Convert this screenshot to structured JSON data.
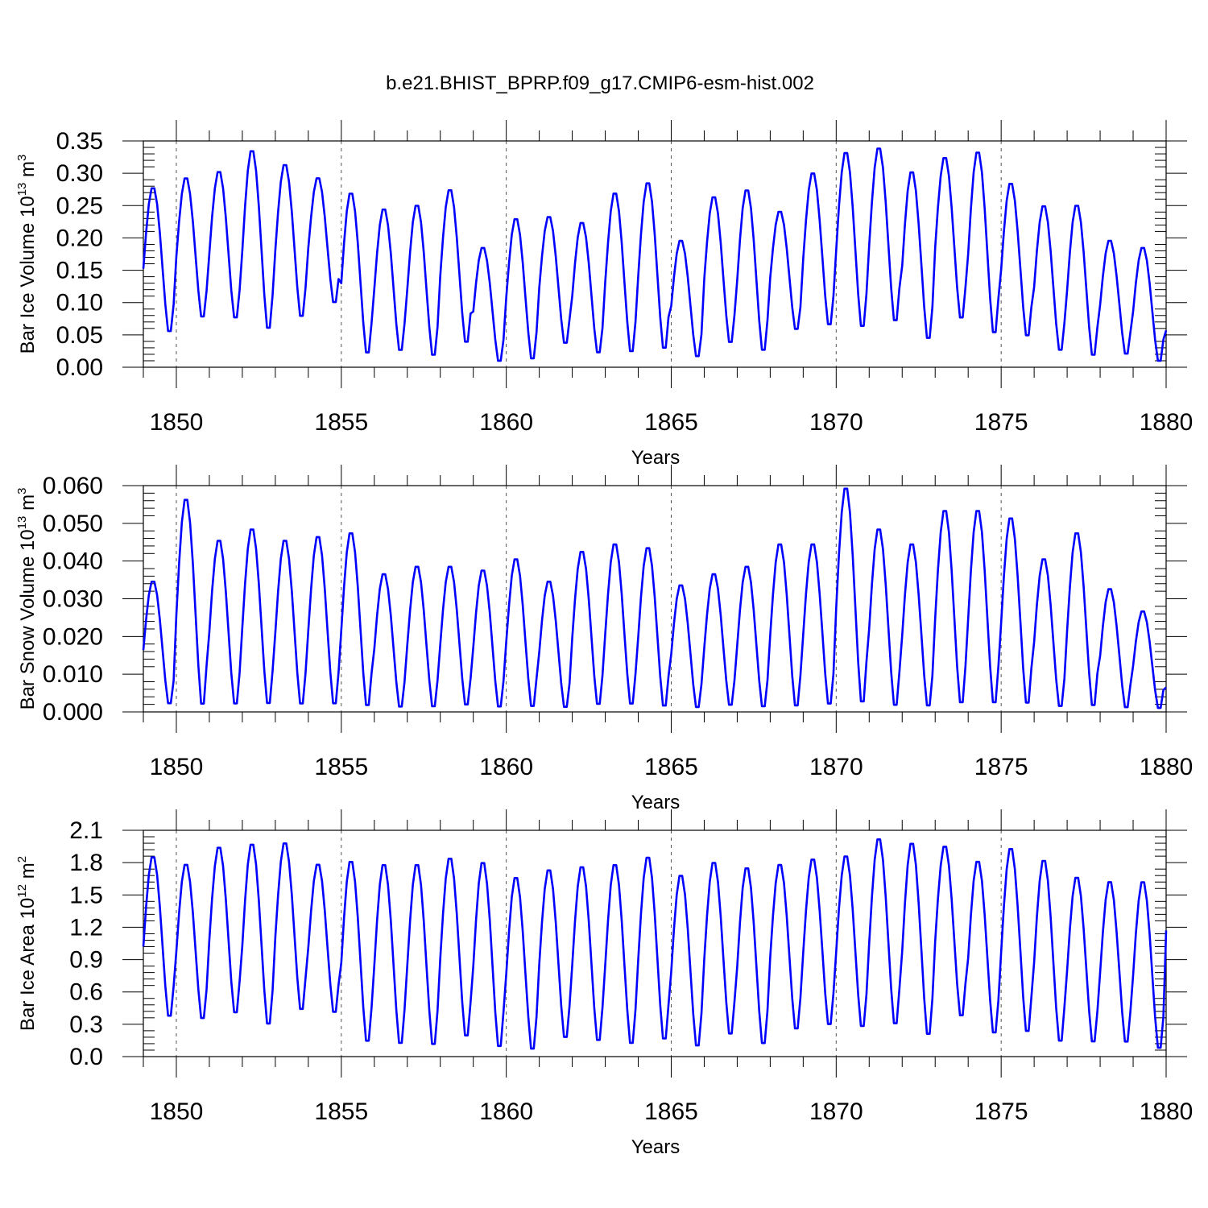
{
  "title": "b.e21.BHIST_BPRP.f09_g17.CMIP6-esm-hist.002",
  "chart_data": [
    {
      "type": "line",
      "ylabel": {
        "text": "Bar Ice Volume 10",
        "exp": "13",
        "unit": " m",
        "unit_exp": "3"
      },
      "xlabel": "Years",
      "xlim": [
        1849,
        1880
      ],
      "ylim": [
        0,
        0.35
      ],
      "xticks": [
        1850,
        1855,
        1860,
        1865,
        1870,
        1875,
        1880
      ],
      "yticks": [
        0.0,
        0.05,
        0.1,
        0.15,
        0.2,
        0.25,
        0.3,
        0.35
      ],
      "ytick_labels": [
        "0.00",
        "0.05",
        "0.10",
        "0.15",
        "0.20",
        "0.25",
        "0.30",
        "0.35"
      ],
      "grid": "vertical-dashed",
      "line_color": "#0000ff",
      "years": [
        1849,
        1850,
        1851,
        1852,
        1853,
        1854,
        1855,
        1856,
        1857,
        1858,
        1859,
        1860,
        1861,
        1862,
        1863,
        1864,
        1865,
        1866,
        1867,
        1868,
        1869,
        1870,
        1871,
        1872,
        1873,
        1874,
        1875,
        1876,
        1877,
        1878,
        1879
      ],
      "annual_max": [
        0.28,
        0.295,
        0.305,
        0.338,
        0.316,
        0.295,
        0.272,
        0.247,
        0.253,
        0.277,
        0.187,
        0.232,
        0.235,
        0.226,
        0.272,
        0.288,
        0.198,
        0.266,
        0.277,
        0.243,
        0.303,
        0.335,
        0.342,
        0.305,
        0.327,
        0.336,
        0.287,
        0.252,
        0.253,
        0.198,
        0.187
      ],
      "annual_min": [
        0.047,
        0.07,
        0.068,
        0.05,
        0.07,
        0.093,
        0.013,
        0.018,
        0.01,
        0.03,
        0.003,
        0.005,
        0.03,
        0.015,
        0.015,
        0.02,
        0.01,
        0.03,
        0.017,
        0.052,
        0.057,
        0.053,
        0.062,
        0.035,
        0.067,
        0.043,
        0.04,
        0.018,
        0.01,
        0.014,
        0.003
      ],
      "end_value": 0.057
    },
    {
      "type": "line",
      "ylabel": {
        "text": "Bar Snow Volume 10",
        "exp": "13",
        "unit": " m",
        "unit_exp": "3"
      },
      "xlabel": "Years",
      "xlim": [
        1849,
        1880
      ],
      "ylim": [
        0,
        0.06
      ],
      "xticks": [
        1850,
        1855,
        1860,
        1865,
        1870,
        1875,
        1880
      ],
      "yticks": [
        0.0,
        0.01,
        0.02,
        0.03,
        0.04,
        0.05,
        0.06
      ],
      "ytick_labels": [
        "0.000",
        "0.010",
        "0.020",
        "0.030",
        "0.040",
        "0.050",
        "0.060"
      ],
      "grid": "vertical-dashed",
      "line_color": "#0000ff",
      "years": [
        1849,
        1850,
        1851,
        1852,
        1853,
        1854,
        1855,
        1856,
        1857,
        1858,
        1859,
        1860,
        1861,
        1862,
        1863,
        1864,
        1865,
        1866,
        1867,
        1868,
        1869,
        1870,
        1871,
        1872,
        1873,
        1874,
        1875,
        1876,
        1877,
        1878,
        1879
      ],
      "annual_max": [
        0.035,
        0.057,
        0.046,
        0.049,
        0.046,
        0.047,
        0.048,
        0.037,
        0.039,
        0.039,
        0.038,
        0.041,
        0.035,
        0.043,
        0.045,
        0.044,
        0.034,
        0.037,
        0.039,
        0.045,
        0.045,
        0.06,
        0.049,
        0.045,
        0.054,
        0.054,
        0.052,
        0.041,
        0.048,
        0.033,
        0.027
      ],
      "annual_min": [
        0.001,
        0.0,
        0.0005,
        0.0005,
        0.0005,
        0.0005,
        0.0,
        0.0,
        0.0,
        0.0005,
        0.0,
        0.0,
        0.0,
        0.0005,
        0.0005,
        0.0,
        0.0,
        0.0005,
        0.0,
        0.0,
        0.0005,
        0.0005,
        0.0,
        0.0,
        0.0005,
        0.0005,
        0.0005,
        0.0,
        0.0,
        0.0,
        0.0
      ],
      "end_value": 0.0065
    },
    {
      "type": "line",
      "ylabel": {
        "text": "Bar Ice Area 10",
        "exp": "12",
        "unit": " m",
        "unit_exp": "2"
      },
      "xlabel": "Years",
      "xlim": [
        1849,
        1880
      ],
      "ylim": [
        0,
        2.1
      ],
      "xticks": [
        1850,
        1855,
        1860,
        1865,
        1870,
        1875,
        1880
      ],
      "yticks": [
        0.0,
        0.3,
        0.6,
        0.9,
        1.2,
        1.5,
        1.8,
        2.1
      ],
      "ytick_labels": [
        "0.0",
        "0.3",
        "0.6",
        "0.9",
        "1.2",
        "1.5",
        "1.8",
        "2.1"
      ],
      "grid": "vertical-dashed",
      "line_color": "#0000ff",
      "years": [
        1849,
        1850,
        1851,
        1852,
        1853,
        1854,
        1855,
        1856,
        1857,
        1858,
        1859,
        1860,
        1861,
        1862,
        1863,
        1864,
        1865,
        1866,
        1867,
        1868,
        1869,
        1870,
        1871,
        1872,
        1873,
        1874,
        1875,
        1876,
        1877,
        1878,
        1879
      ],
      "annual_max": [
        1.87,
        1.8,
        1.96,
        1.99,
        2.0,
        1.8,
        1.83,
        1.8,
        1.8,
        1.86,
        1.82,
        1.68,
        1.75,
        1.78,
        1.8,
        1.87,
        1.7,
        1.82,
        1.77,
        1.8,
        1.85,
        1.88,
        2.04,
        2.0,
        1.97,
        1.83,
        1.95,
        1.84,
        1.68,
        1.64,
        1.64
      ],
      "annual_min": [
        0.32,
        0.3,
        0.35,
        0.24,
        0.38,
        0.36,
        0.08,
        0.06,
        0.05,
        0.13,
        0.03,
        0.01,
        0.12,
        0.09,
        0.06,
        0.1,
        0.04,
        0.15,
        0.06,
        0.2,
        0.24,
        0.22,
        0.24,
        0.14,
        0.32,
        0.16,
        0.17,
        0.08,
        0.08,
        0.08,
        0.02
      ],
      "end_value": 1.17
    }
  ]
}
